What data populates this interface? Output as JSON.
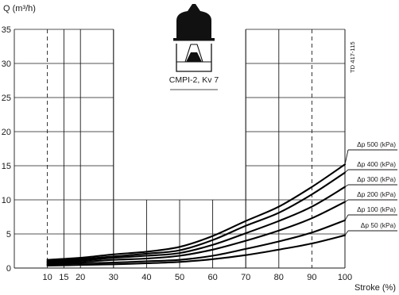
{
  "chart_data": {
    "type": "line",
    "ylabel": "Q (m³/h)",
    "xlabel": "Stroke (%)",
    "xlim": [
      0,
      100
    ],
    "ylim": [
      0,
      35
    ],
    "x_ticks": [
      10,
      15,
      20,
      30,
      40,
      50,
      60,
      70,
      80,
      90,
      100
    ],
    "x_tick_labels": [
      "10",
      "15",
      "20",
      "30",
      "40",
      "50",
      "60",
      "70",
      "80",
      "90",
      "100"
    ],
    "y_ticks": [
      0,
      5,
      10,
      15,
      20,
      25,
      30,
      35
    ],
    "y_tick_labels": [
      "0",
      "5",
      "10",
      "15",
      "20",
      "25",
      "30",
      "35"
    ],
    "grid": true,
    "dashed_vertical_x": [
      10,
      90
    ],
    "valve_label": "CMPI-2, Kv 7",
    "reference_code": "TD 417-115",
    "series": [
      {
        "name": "Δp 500 (kPa)",
        "x": [
          10,
          20,
          30,
          40,
          50,
          60,
          70,
          80,
          90,
          100
        ],
        "y": [
          1.2,
          1.5,
          2.0,
          2.4,
          3.1,
          4.7,
          6.9,
          9.0,
          11.9,
          15.2
        ]
      },
      {
        "name": "Δp 400 (kPa)",
        "x": [
          10,
          20,
          30,
          40,
          50,
          60,
          70,
          80,
          90,
          100
        ],
        "y": [
          1.0,
          1.3,
          1.7,
          2.1,
          2.6,
          4.1,
          6.2,
          8.1,
          10.8,
          14.0
        ]
      },
      {
        "name": "Δp 300 (kPa)",
        "x": [
          10,
          20,
          30,
          40,
          50,
          60,
          70,
          80,
          90,
          100
        ],
        "y": [
          0.8,
          1.1,
          1.5,
          1.8,
          2.2,
          3.4,
          5.1,
          6.9,
          9.0,
          11.9
        ]
      },
      {
        "name": "Δp 200 (kPa)",
        "x": [
          10,
          20,
          30,
          40,
          50,
          60,
          70,
          80,
          90,
          100
        ],
        "y": [
          0.7,
          0.9,
          1.2,
          1.4,
          1.8,
          2.7,
          4.0,
          5.5,
          7.3,
          9.7
        ]
      },
      {
        "name": "Δp 100 (kPa)",
        "x": [
          10,
          20,
          30,
          40,
          50,
          60,
          70,
          80,
          90,
          100
        ],
        "y": [
          0.5,
          0.7,
          0.8,
          1.0,
          1.2,
          1.8,
          2.8,
          3.9,
          5.2,
          7.0
        ]
      },
      {
        "name": "Δp 50 (kPa)",
        "x": [
          10,
          20,
          30,
          40,
          50,
          60,
          70,
          80,
          90,
          100
        ],
        "y": [
          0.35,
          0.45,
          0.55,
          0.7,
          0.9,
          1.3,
          1.9,
          2.7,
          3.6,
          4.8
        ]
      }
    ]
  }
}
